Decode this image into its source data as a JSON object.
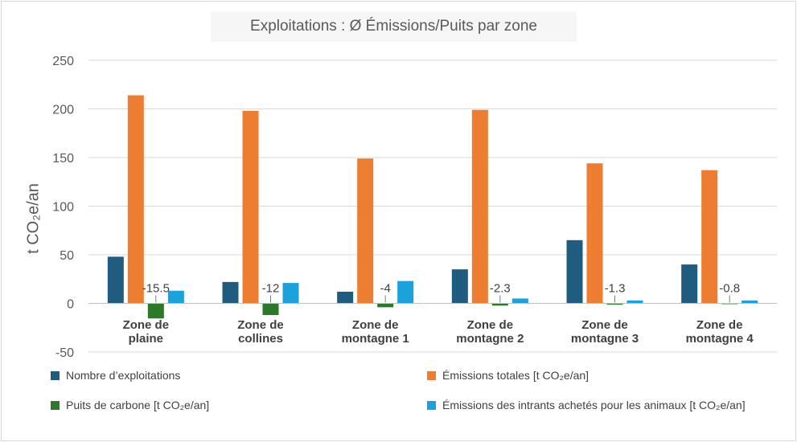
{
  "chart_data": {
    "type": "bar",
    "title": "Exploitations : Ø Émissions/Puits par zone",
    "ylabel": "t CO₂e/an",
    "xlabel": "",
    "ylim": [
      -50,
      250
    ],
    "yticks": [
      -50,
      0,
      50,
      100,
      150,
      200,
      250
    ],
    "grid": true,
    "legend_position": "bottom",
    "categories": [
      "Zone de plaine",
      "Zone de collines",
      "Zone de montagne 1",
      "Zone de montagne 2",
      "Zone de montagne 3",
      "Zone de montagne 4"
    ],
    "category_lines": [
      [
        "Zone de",
        "plaine"
      ],
      [
        "Zone de",
        "collines"
      ],
      [
        "Zone de",
        "montagne 1"
      ],
      [
        "Zone de",
        "montagne 2"
      ],
      [
        "Zone de",
        "montagne 3"
      ],
      [
        "Zone de",
        "montagne 4"
      ]
    ],
    "series": [
      {
        "name": "Nombre d’exploitations",
        "color": "#1f5c7f",
        "values": [
          48,
          22,
          12,
          35,
          65,
          40
        ]
      },
      {
        "name": "Émissions totales [t CO₂e/an]",
        "color": "#ed7d31",
        "values": [
          214,
          198,
          149,
          199,
          144,
          137
        ]
      },
      {
        "name": "Puits de carbone [t CO₂e/an]",
        "color": "#2a7a2a",
        "values": [
          -15.5,
          -12,
          -4,
          -2.3,
          -1.3,
          -0.8
        ],
        "data_labels": [
          "-15.5",
          "-12",
          "-4",
          "-2.3",
          "-1.3",
          "-0.8"
        ]
      },
      {
        "name": "Émissions des intrants achetés pour les animaux [t CO₂e/an]",
        "color": "#1ba1dc",
        "values": [
          13,
          21,
          23,
          5,
          3,
          3
        ]
      }
    ]
  }
}
